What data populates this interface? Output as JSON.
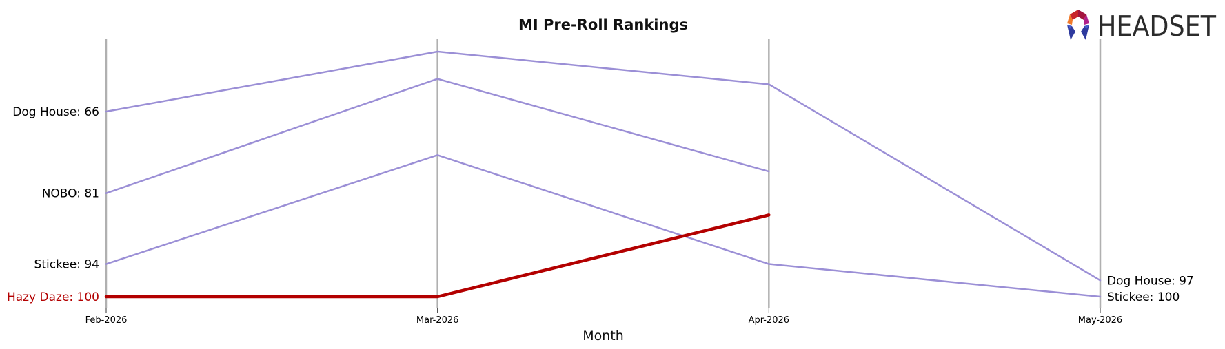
{
  "chart_data": {
    "type": "line",
    "title": "MI Pre-Roll Rankings",
    "xlabel": "Month",
    "ylabel": "",
    "x": [
      "Feb-2026",
      "Mar-2026",
      "Apr-2026",
      "May-2026"
    ],
    "ylim": [
      100,
      55
    ],
    "y_inverted": true,
    "grid": "vertical lines at each month",
    "series": [
      {
        "name": "Dog House",
        "values": [
          66,
          55,
          61,
          97
        ],
        "color": "#9b8fd6",
        "highlight": false
      },
      {
        "name": "NOBO",
        "values": [
          81,
          60,
          77,
          null
        ],
        "color": "#9b8fd6",
        "highlight": false
      },
      {
        "name": "Stickee",
        "values": [
          94,
          74,
          94,
          100
        ],
        "color": "#9b8fd6",
        "highlight": false
      },
      {
        "name": "Hazy Daze",
        "values": [
          100,
          100,
          85,
          null
        ],
        "color": "#b30000",
        "highlight": true
      }
    ],
    "left_labels": [
      {
        "text": "Dog House: 66",
        "series": "Dog House",
        "color": "#000000"
      },
      {
        "text": "NOBO: 81",
        "series": "NOBO",
        "color": "#000000"
      },
      {
        "text": "Stickee: 94",
        "series": "Stickee",
        "color": "#000000"
      },
      {
        "text": "Hazy Daze: 100",
        "series": "Hazy Daze",
        "color": "#b30000"
      }
    ],
    "right_labels": [
      {
        "text": "Dog House: 97",
        "series": "Dog House"
      },
      {
        "text": "Stickee: 100",
        "series": "Stickee"
      }
    ]
  },
  "logo": {
    "text": "HEADSET"
  }
}
